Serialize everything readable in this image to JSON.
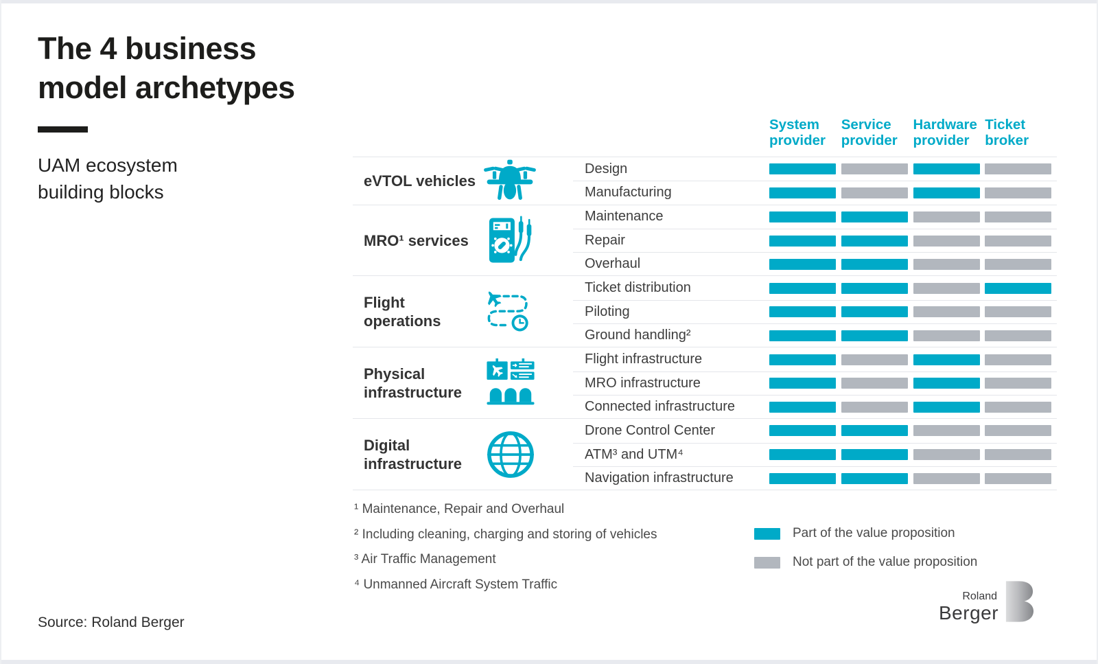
{
  "header": {
    "title": "The 4 business model archetypes",
    "subtitle": "UAM ecosystem building blocks"
  },
  "chart_data": {
    "type": "table",
    "title": "The 4 business model archetypes",
    "subtitle": "UAM ecosystem building blocks",
    "value_semantics": "1 = part of the value proposition, 0 = not part of the value proposition",
    "columns": [
      "System provider",
      "Service provider",
      "Hardware provider",
      "Ticket broker"
    ],
    "groups": [
      {
        "category": "eVTOL vehicles",
        "icon": "drone-icon",
        "rows": [
          {
            "label": "Design",
            "values": [
              1,
              0,
              1,
              0
            ]
          },
          {
            "label": "Manufacturing",
            "values": [
              1,
              0,
              1,
              0
            ]
          }
        ]
      },
      {
        "category": "MRO¹ services",
        "icon": "multimeter-icon",
        "rows": [
          {
            "label": "Maintenance",
            "values": [
              1,
              1,
              0,
              0
            ]
          },
          {
            "label": "Repair",
            "values": [
              1,
              1,
              0,
              0
            ]
          },
          {
            "label": "Overhaul",
            "values": [
              1,
              1,
              0,
              0
            ]
          }
        ]
      },
      {
        "category": "Flight operations",
        "icon": "flight-route-icon",
        "rows": [
          {
            "label": "Ticket distribution",
            "values": [
              1,
              1,
              0,
              1
            ]
          },
          {
            "label": "Piloting",
            "values": [
              1,
              1,
              0,
              0
            ]
          },
          {
            "label": "Ground handling²",
            "values": [
              1,
              1,
              0,
              0
            ]
          }
        ]
      },
      {
        "category": "Physical infrastructure",
        "icon": "airport-icon",
        "rows": [
          {
            "label": "Flight infrastructure",
            "values": [
              1,
              0,
              1,
              0
            ]
          },
          {
            "label": "MRO infrastructure",
            "values": [
              1,
              0,
              1,
              0
            ]
          },
          {
            "label": "Connected infrastructure",
            "values": [
              1,
              0,
              1,
              0
            ]
          }
        ]
      },
      {
        "category": "Digital infrastructure",
        "icon": "globe-icon",
        "rows": [
          {
            "label": "Drone Control Center",
            "values": [
              1,
              1,
              0,
              0
            ]
          },
          {
            "label": "ATM³ and UTM⁴",
            "values": [
              1,
              1,
              0,
              0
            ]
          },
          {
            "label": "Navigation infrastructure",
            "values": [
              1,
              1,
              0,
              0
            ]
          }
        ]
      }
    ],
    "legend": [
      {
        "value": 1,
        "label": "Part of the value proposition",
        "color": "#00aac8"
      },
      {
        "value": 0,
        "label": "Not part of the value proposition",
        "color": "#b2b7be"
      }
    ]
  },
  "footnotes": [
    "¹ Maintenance, Repair and Overhaul",
    "² Including cleaning, charging and storing of vehicles",
    "³ Air Traffic Management",
    "⁴ Unmanned Aircraft System Traffic"
  ],
  "source": "Source: Roland Berger",
  "logo": {
    "line1": "Roland",
    "line2": "Berger"
  },
  "colors": {
    "accent": "#00aac8",
    "inactive": "#b2b7be"
  }
}
